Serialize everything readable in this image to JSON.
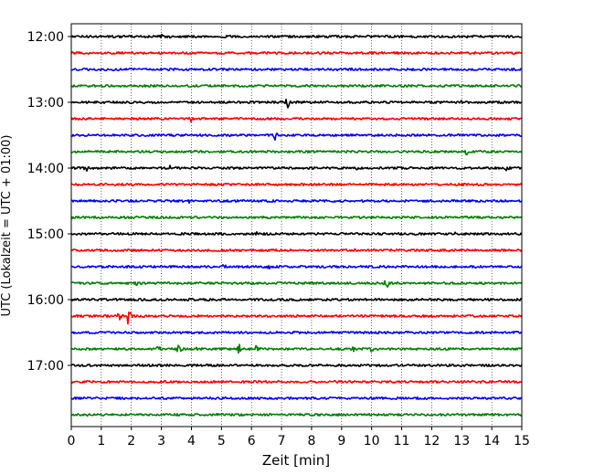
{
  "chart_data": {
    "type": "line",
    "title": "",
    "xlabel": "Zeit  [min]",
    "ylabel": "UTC (Lokalzeit = UTC + 01:00)",
    "xlim": [
      0,
      15
    ],
    "x_ticks": [
      "0",
      "1",
      "2",
      "3",
      "4",
      "5",
      "6",
      "7",
      "8",
      "9",
      "10",
      "11",
      "12",
      "13",
      "14",
      "15"
    ],
    "y_ticks": [
      "12:00",
      "13:00",
      "14:00",
      "15:00",
      "16:00",
      "17:00"
    ],
    "grid": "vertical dotted lines at each minute",
    "line_colors": [
      "#000000",
      "#ff0000",
      "#0000ff",
      "#008000"
    ],
    "series": [
      {
        "start": "12:00",
        "color": "#000000",
        "events": [
          {
            "t": 3.3,
            "amp": 5
          },
          {
            "t": 3.0,
            "amp": 3
          },
          {
            "t": 13.2,
            "amp": 3
          }
        ]
      },
      {
        "start": "12:15",
        "color": "#ff0000",
        "events": [
          {
            "t": 4.0,
            "amp": 2
          }
        ]
      },
      {
        "start": "12:30",
        "color": "#0000ff",
        "events": [
          {
            "t": 9.3,
            "amp": 3
          },
          {
            "t": 1.0,
            "amp": 2
          }
        ]
      },
      {
        "start": "12:45",
        "color": "#008000",
        "events": [
          {
            "t": 2.0,
            "amp": 2
          }
        ]
      },
      {
        "start": "13:00",
        "color": "#000000",
        "events": [
          {
            "t": 7.2,
            "amp": 8
          },
          {
            "t": 13.0,
            "amp": 3
          }
        ]
      },
      {
        "start": "13:15",
        "color": "#ff0000",
        "events": [
          {
            "t": 4.0,
            "amp": 5
          },
          {
            "t": 2.5,
            "amp": 2
          }
        ]
      },
      {
        "start": "13:30",
        "color": "#0000ff",
        "events": [
          {
            "t": 6.8,
            "amp": 7
          }
        ]
      },
      {
        "start": "13:45",
        "color": "#008000",
        "events": [
          {
            "t": 13.2,
            "amp": 9
          }
        ]
      },
      {
        "start": "14:00",
        "color": "#000000",
        "events": [
          {
            "t": 0.5,
            "amp": 6
          },
          {
            "t": 3.3,
            "amp": 4
          },
          {
            "t": 9.5,
            "amp": 4
          },
          {
            "t": 14.5,
            "amp": 6
          }
        ]
      },
      {
        "start": "14:15",
        "color": "#ff0000",
        "events": [
          {
            "t": 1.5,
            "amp": 3
          },
          {
            "t": 8.0,
            "amp": 2
          },
          {
            "t": 12.5,
            "amp": 3
          }
        ]
      },
      {
        "start": "14:30",
        "color": "#0000ff",
        "events": [
          {
            "t": 3.9,
            "amp": 6
          },
          {
            "t": 9.8,
            "amp": 3
          }
        ]
      },
      {
        "start": "14:45",
        "color": "#008000",
        "events": [
          {
            "t": 7.5,
            "amp": 2
          },
          {
            "t": 13.7,
            "amp": 2
          }
        ]
      },
      {
        "start": "15:00",
        "color": "#000000",
        "events": [
          {
            "t": 6.2,
            "amp": 4
          },
          {
            "t": 12.8,
            "amp": 3
          }
        ]
      },
      {
        "start": "15:15",
        "color": "#ff0000",
        "events": [
          {
            "t": 5.8,
            "amp": 3
          },
          {
            "t": 8.5,
            "amp": 2
          }
        ]
      },
      {
        "start": "15:30",
        "color": "#0000ff",
        "events": [
          {
            "t": 5.1,
            "amp": 5
          },
          {
            "t": 6.6,
            "amp": 5
          },
          {
            "t": 2.3,
            "amp": 2
          }
        ]
      },
      {
        "start": "15:45",
        "color": "#008000",
        "events": [
          {
            "t": 2.2,
            "amp": 5
          },
          {
            "t": 10.5,
            "amp": 9
          }
        ]
      },
      {
        "start": "16:00",
        "color": "#000000",
        "events": [
          {
            "t": 3.2,
            "amp": 2
          }
        ]
      },
      {
        "start": "16:15",
        "color": "#ff0000",
        "events": [
          {
            "t": 1.9,
            "amp": 14
          },
          {
            "t": 1.6,
            "amp": 6
          }
        ]
      },
      {
        "start": "16:30",
        "color": "#0000ff",
        "events": []
      },
      {
        "start": "16:45",
        "color": "#008000",
        "events": [
          {
            "t": 2.0,
            "amp": 3
          },
          {
            "t": 2.9,
            "amp": 7
          },
          {
            "t": 3.6,
            "amp": 9
          },
          {
            "t": 4.2,
            "amp": 4
          },
          {
            "t": 5.6,
            "amp": 8
          },
          {
            "t": 6.2,
            "amp": 9
          },
          {
            "t": 9.4,
            "amp": 6
          },
          {
            "t": 10.0,
            "amp": 6
          }
        ]
      },
      {
        "start": "17:00",
        "color": "#000000",
        "events": [
          {
            "t": 4.0,
            "amp": 2
          }
        ]
      },
      {
        "start": "17:15",
        "color": "#ff0000",
        "events": [
          {
            "t": 3.4,
            "amp": 3
          }
        ]
      },
      {
        "start": "17:30",
        "color": "#0000ff",
        "events": []
      },
      {
        "start": "17:45",
        "color": "#008000",
        "events": [
          {
            "t": 8.0,
            "amp": 2
          }
        ]
      }
    ]
  }
}
